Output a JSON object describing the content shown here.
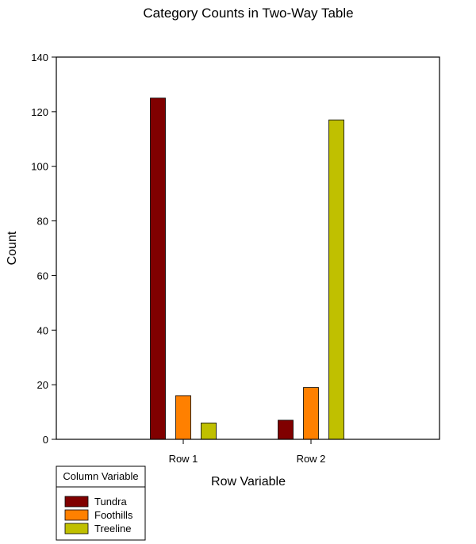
{
  "chart_data": {
    "type": "bar",
    "title": "Category Counts in Two-Way Table",
    "xlabel": "Row Variable",
    "ylabel": "Count",
    "ylim": [
      0,
      140
    ],
    "yticks": [
      0,
      20,
      40,
      60,
      80,
      100,
      120,
      140
    ],
    "categories": [
      "Row 1",
      "Row 2"
    ],
    "series": [
      {
        "name": "Tundra",
        "values": [
          125,
          7
        ],
        "color": "#800000"
      },
      {
        "name": "Foothills",
        "values": [
          16,
          19
        ],
        "color": "#ff8000"
      },
      {
        "name": "Treeline",
        "values": [
          6,
          117
        ],
        "color": "#c0c000"
      }
    ],
    "legend": {
      "title": "Column Variable",
      "placement": "bottom-left"
    },
    "grid": false
  }
}
